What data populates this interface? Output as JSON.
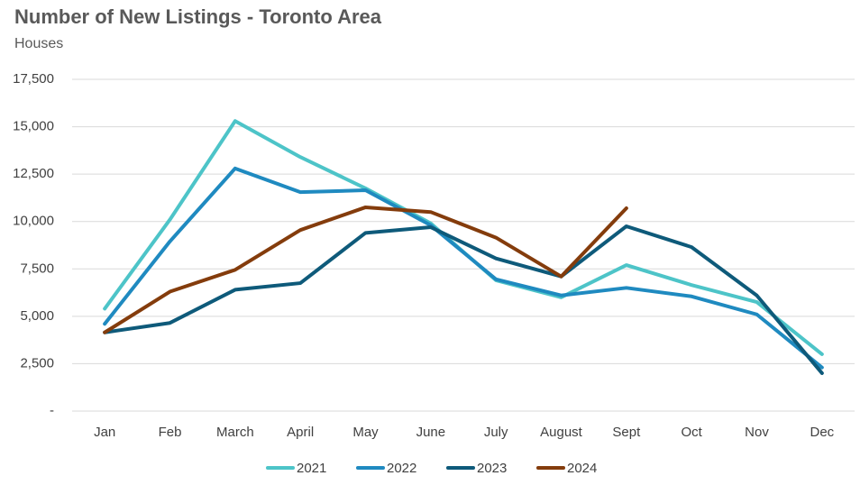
{
  "chart_data": {
    "type": "line",
    "title": "Number of New Listings - Toronto Area",
    "subtitle": "Houses",
    "categories": [
      "Jan",
      "Feb",
      "March",
      "April",
      "May",
      "June",
      "July",
      "August",
      "Sept",
      "Oct",
      "Nov",
      "Dec"
    ],
    "series": [
      {
        "name": "2021",
        "color": "#4dc4c8",
        "values": [
          5400,
          10100,
          15300,
          13400,
          11750,
          9900,
          6900,
          6000,
          7700,
          6650,
          5750,
          3000
        ]
      },
      {
        "name": "2022",
        "color": "#1f8ac0",
        "values": [
          4600,
          8950,
          12800,
          11550,
          11650,
          9800,
          6950,
          6100,
          6500,
          6050,
          5100,
          2300
        ]
      },
      {
        "name": "2023",
        "color": "#0e5a7a",
        "values": [
          4150,
          4650,
          6400,
          6750,
          9400,
          9700,
          8050,
          7100,
          9750,
          8650,
          6100,
          2000
        ]
      },
      {
        "name": "2024",
        "color": "#843c0c",
        "values": [
          4150,
          6300,
          7450,
          9550,
          10750,
          10500,
          9150,
          7100,
          10700,
          null,
          null,
          null
        ]
      }
    ],
    "ylim": [
      0,
      17500
    ],
    "yticks": [
      {
        "value": 0,
        "label": "-"
      },
      {
        "value": 2500,
        "label": "2,500"
      },
      {
        "value": 5000,
        "label": "5,000"
      },
      {
        "value": 7500,
        "label": "7,500"
      },
      {
        "value": 10000,
        "label": "10,000"
      },
      {
        "value": 12500,
        "label": "12,500"
      },
      {
        "value": 15000,
        "label": "15,000"
      },
      {
        "value": 17500,
        "label": "17,500"
      }
    ],
    "grid": true,
    "legend": "bottom"
  }
}
